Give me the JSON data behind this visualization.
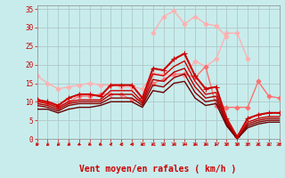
{
  "background_color": "#c8ecec",
  "grid_color": "#b0c8c8",
  "xlabel": "Vent moyen/en rafales ( km/h )",
  "xlabel_color": "#cc0000",
  "xlabel_fontsize": 7,
  "xtick_color": "#cc0000",
  "ytick_color": "#cc0000",
  "x_values": [
    0,
    1,
    2,
    3,
    4,
    5,
    6,
    7,
    8,
    9,
    10,
    11,
    12,
    13,
    14,
    15,
    16,
    17,
    18,
    19,
    20,
    21,
    22,
    23
  ],
  "lines": [
    {
      "y": [
        17.0,
        15.0,
        13.5,
        14.0,
        14.5,
        15.0,
        14.5,
        14.5,
        14.0,
        14.0,
        13.5,
        17.5,
        17.5,
        17.0,
        17.0,
        21.0,
        19.5,
        21.5,
        28.5,
        28.5,
        21.5,
        null,
        null,
        null
      ],
      "color": "#ffb0b0",
      "linewidth": 1.0,
      "marker": "D",
      "markersize": 2.5,
      "zorder": 2
    },
    {
      "y": [
        null,
        null,
        null,
        null,
        null,
        null,
        null,
        null,
        null,
        null,
        null,
        28.5,
        33.0,
        34.5,
        31.0,
        33.0,
        31.0,
        30.5,
        27.5,
        null,
        null,
        null,
        null,
        null
      ],
      "color": "#ffb0b0",
      "linewidth": 1.0,
      "marker": "D",
      "markersize": 2.5,
      "zorder": 2
    },
    {
      "y": [
        10.5,
        9.5,
        8.5,
        10.0,
        11.5,
        11.5,
        12.0,
        12.0,
        12.0,
        10.5,
        10.5,
        15.0,
        16.0,
        17.5,
        17.5,
        16.5,
        19.5,
        9.0,
        8.5,
        8.5,
        8.5,
        15.5,
        11.5,
        11.0
      ],
      "color": "#ff7070",
      "linewidth": 1.0,
      "marker": "D",
      "markersize": 2.5,
      "zorder": 3
    },
    {
      "y": [
        10.5,
        10.0,
        9.0,
        11.0,
        12.0,
        12.0,
        11.5,
        14.5,
        14.5,
        14.5,
        11.0,
        19.0,
        18.5,
        21.5,
        23.0,
        17.0,
        13.5,
        14.0,
        5.5,
        0.5,
        5.5,
        6.5,
        7.0,
        7.0
      ],
      "color": "#cc0000",
      "linewidth": 1.5,
      "marker": "+",
      "markersize": 4,
      "zorder": 5
    },
    {
      "y": [
        10.0,
        9.5,
        8.5,
        10.0,
        10.5,
        10.5,
        10.5,
        13.0,
        13.0,
        13.0,
        10.0,
        17.5,
        17.0,
        19.5,
        21.0,
        15.5,
        12.0,
        12.5,
        5.0,
        0.0,
        4.5,
        5.5,
        6.0,
        6.0
      ],
      "color": "#cc0000",
      "linewidth": 1.0,
      "marker": null,
      "markersize": 0,
      "zorder": 4
    },
    {
      "y": [
        9.5,
        9.0,
        8.0,
        9.5,
        10.0,
        10.0,
        10.0,
        12.0,
        12.0,
        12.0,
        9.5,
        16.0,
        15.5,
        18.0,
        19.0,
        14.0,
        11.0,
        11.5,
        4.5,
        0.0,
        4.0,
        5.0,
        5.5,
        5.5
      ],
      "color": "#aa0000",
      "linewidth": 1.0,
      "marker": null,
      "markersize": 0,
      "zorder": 4
    },
    {
      "y": [
        9.0,
        8.5,
        7.5,
        9.0,
        9.5,
        9.5,
        9.5,
        11.0,
        11.0,
        11.0,
        9.0,
        14.5,
        14.0,
        16.5,
        17.5,
        12.5,
        10.0,
        10.5,
        4.0,
        0.0,
        3.5,
        4.5,
        5.0,
        5.0
      ],
      "color": "#880000",
      "linewidth": 1.0,
      "marker": null,
      "markersize": 0,
      "zorder": 4
    },
    {
      "y": [
        8.0,
        8.0,
        7.0,
        8.0,
        8.5,
        8.5,
        9.0,
        10.0,
        10.0,
        10.0,
        8.5,
        13.0,
        12.5,
        15.0,
        15.5,
        11.0,
        9.0,
        9.5,
        3.5,
        0.0,
        3.0,
        4.0,
        4.5,
        4.5
      ],
      "color": "#660000",
      "linewidth": 1.0,
      "marker": null,
      "markersize": 0,
      "zorder": 4
    }
  ],
  "wind_angles": [
    -120,
    -130,
    -140,
    -140,
    -150,
    -160,
    -160,
    -170,
    -175,
    -175,
    -175,
    -165,
    -160,
    -155,
    -155,
    -145,
    -140,
    -130,
    -100,
    -90,
    30,
    45,
    50,
    55
  ],
  "xlim": [
    0,
    23
  ],
  "ylim": [
    0,
    36
  ],
  "yticks": [
    0,
    5,
    10,
    15,
    20,
    25,
    30,
    35
  ]
}
